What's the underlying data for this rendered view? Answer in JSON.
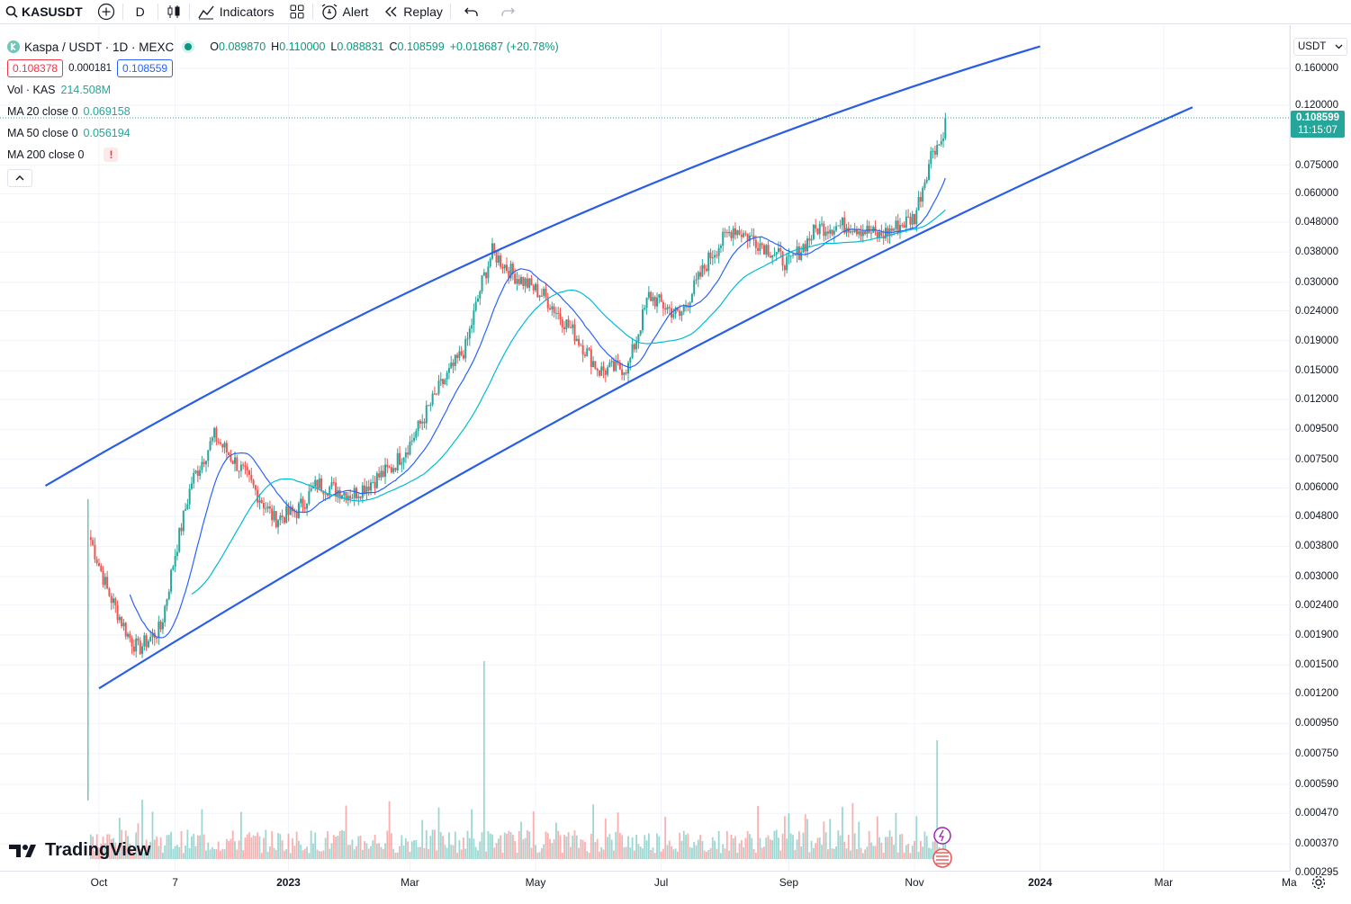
{
  "toolbar": {
    "symbol": "KASUSDT",
    "interval": "D",
    "indicators_label": "Indicators",
    "alert_label": "Alert",
    "replay_label": "Replay"
  },
  "legend": {
    "title": "Kaspa / USDT · 1D · MEXC",
    "open_label": "O",
    "open": "0.089870",
    "high_label": "H",
    "high": "0.110000",
    "low_label": "L",
    "low": "0.088831",
    "close_label": "C",
    "close": "0.108599",
    "change": "+0.018687 (+20.78%)",
    "bid": "0.108378",
    "spread": "0.000181",
    "ask": "0.108559",
    "vol_label": "Vol · KAS",
    "vol_value": "214.508M",
    "ma20_label": "MA 20 close 0",
    "ma20_value": "0.069158",
    "ma50_label": "MA 50 close 0",
    "ma50_value": "0.056194",
    "ma200_label": "MA 200 close 0",
    "ma200_warning": "!"
  },
  "axis": {
    "currency": "USDT",
    "last_price": "0.108599",
    "countdown": "11:15:07"
  },
  "brand": {
    "logo_text": "TradingView"
  },
  "colors": {
    "up": "#26a69a",
    "down": "#ef5350",
    "ma20": "#2962ff",
    "ma50": "#00bcd4",
    "trend": "#2a5de6"
  },
  "chart_data": {
    "type": "candlestick",
    "symbol": "KASUSDT",
    "scale": "log",
    "y_range": [
      0.000285,
      0.18
    ],
    "y_ticks": [
      0.16,
      0.12,
      0.075,
      0.06,
      0.048,
      0.038,
      0.03,
      0.024,
      0.019,
      0.015,
      0.012,
      0.0095,
      0.0075,
      0.006,
      0.0048,
      0.0038,
      0.003,
      0.0024,
      0.0019,
      0.0015,
      0.0012,
      0.00095,
      0.00075,
      0.00059,
      0.00047,
      0.00037,
      0.000295
    ],
    "y_tick_labels": [
      "0.160000",
      "0.120000",
      "0.075000",
      "0.060000",
      "0.048000",
      "0.038000",
      "0.030000",
      "0.024000",
      "0.019000",
      "0.015000",
      "0.012000",
      "0.009500",
      "0.007500",
      "0.006000",
      "0.004800",
      "0.003800",
      "0.003000",
      "0.002400",
      "0.001900",
      "0.001500",
      "0.001200",
      "0.000950",
      "0.000750",
      "0.000590",
      "0.000470",
      "0.000370",
      "0.000295"
    ],
    "x_labels": [
      {
        "label": "Oct",
        "date": "2022-10-01",
        "bold": false
      },
      {
        "label": "7",
        "date": "2022-11-07",
        "bold": false
      },
      {
        "label": "2023",
        "date": "2023-01-01",
        "bold": true
      },
      {
        "label": "Mar",
        "date": "2023-03-01",
        "bold": false
      },
      {
        "label": "May",
        "date": "2023-05-01",
        "bold": false
      },
      {
        "label": "Jul",
        "date": "2023-07-01",
        "bold": false
      },
      {
        "label": "Sep",
        "date": "2023-09-01",
        "bold": false
      },
      {
        "label": "Nov",
        "date": "2023-11-01",
        "bold": false
      },
      {
        "label": "2024",
        "date": "2024-01-01",
        "bold": true
      },
      {
        "label": "Mar",
        "date": "2024-03-01",
        "bold": false
      },
      {
        "label": "Ma",
        "date": "2024-05-01",
        "bold": false
      }
    ],
    "price_path": [
      {
        "date": "2022-09-27",
        "price": 0.004
      },
      {
        "date": "2022-10-05",
        "price": 0.0027
      },
      {
        "date": "2022-10-15",
        "price": 0.0019
      },
      {
        "date": "2022-10-20",
        "price": 0.0017
      },
      {
        "date": "2022-10-31",
        "price": 0.002
      },
      {
        "date": "2022-11-07",
        "price": 0.0036
      },
      {
        "date": "2022-11-15",
        "price": 0.0063
      },
      {
        "date": "2022-11-26",
        "price": 0.009
      },
      {
        "date": "2022-12-10",
        "price": 0.0068
      },
      {
        "date": "2022-12-25",
        "price": 0.0047
      },
      {
        "date": "2023-01-05",
        "price": 0.005
      },
      {
        "date": "2023-01-15",
        "price": 0.0062
      },
      {
        "date": "2023-02-01",
        "price": 0.0057
      },
      {
        "date": "2023-02-20",
        "price": 0.007
      },
      {
        "date": "2023-03-01",
        "price": 0.0085
      },
      {
        "date": "2023-03-15",
        "price": 0.013
      },
      {
        "date": "2023-03-28",
        "price": 0.018
      },
      {
        "date": "2023-04-05",
        "price": 0.03
      },
      {
        "date": "2023-04-10",
        "price": 0.038
      },
      {
        "date": "2023-04-20",
        "price": 0.032
      },
      {
        "date": "2023-05-05",
        "price": 0.027
      },
      {
        "date": "2023-05-20",
        "price": 0.02
      },
      {
        "date": "2023-06-01",
        "price": 0.015
      },
      {
        "date": "2023-06-15",
        "price": 0.0155
      },
      {
        "date": "2023-06-25",
        "price": 0.027
      },
      {
        "date": "2023-07-10",
        "price": 0.023
      },
      {
        "date": "2023-07-25",
        "price": 0.037
      },
      {
        "date": "2023-08-05",
        "price": 0.046
      },
      {
        "date": "2023-08-20",
        "price": 0.04
      },
      {
        "date": "2023-09-01",
        "price": 0.0345
      },
      {
        "date": "2023-09-15",
        "price": 0.046
      },
      {
        "date": "2023-10-01",
        "price": 0.047
      },
      {
        "date": "2023-10-15",
        "price": 0.043
      },
      {
        "date": "2023-11-01",
        "price": 0.05
      },
      {
        "date": "2023-11-10",
        "price": 0.086
      },
      {
        "date": "2023-11-14",
        "price": 0.09
      },
      {
        "date": "2023-11-16",
        "price": 0.1086
      }
    ],
    "volume_spikes": [
      {
        "date": "2022-09-26",
        "relative": 0.9
      },
      {
        "date": "2023-04-06",
        "relative": 1.0
      },
      {
        "date": "2023-11-12",
        "relative": 0.6
      }
    ],
    "indicators": [
      {
        "name": "MA 20 close 0",
        "last": 0.069158
      },
      {
        "name": "MA 50 close 0",
        "last": 0.056194
      },
      {
        "name": "MA 200 close 0"
      }
    ],
    "trendlines": [
      {
        "name": "upper-channel",
        "from": {
          "date": "2022-09-05",
          "price": 0.0061
        },
        "to": {
          "date": "2024-01-01",
          "price": 0.19
        }
      },
      {
        "name": "lower-channel",
        "from": {
          "date": "2022-10-01",
          "price": 0.00125
        },
        "to": {
          "date": "2024-03-15",
          "price": 0.118
        }
      }
    ],
    "grid": true,
    "legend_position": "top-left"
  }
}
